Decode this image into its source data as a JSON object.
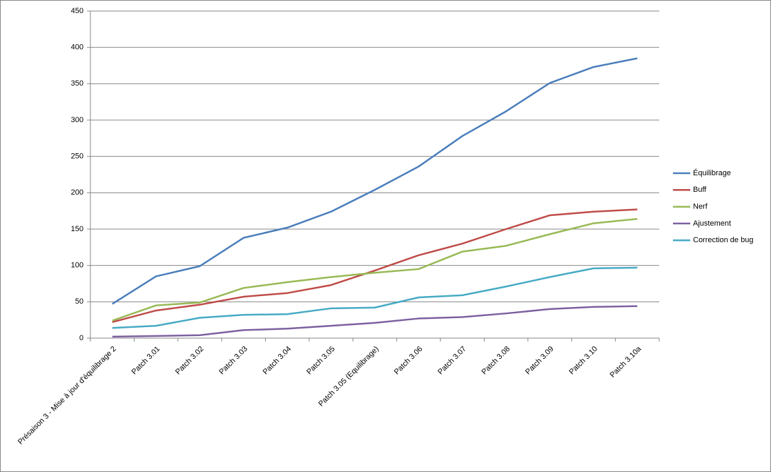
{
  "chart_data": {
    "type": "line",
    "categories": [
      "Présaison 3 - Mise à jour d'équilibrage 2",
      "Patch 3.01",
      "Patch 3.02",
      "Patch 3.03",
      "Patch 3.04",
      "Patch 3.05",
      "Patch 3.05 (Equilibrage)",
      "Patch 3.06",
      "Patch 3.07",
      "Patch 3.08",
      "Patch 3.09",
      "Patch 3.10",
      "Patch 3.10a"
    ],
    "series": [
      {
        "name": "Équilibrage",
        "color": "#4a7ebb",
        "values": [
          47,
          85,
          99,
          138,
          152,
          174,
          204,
          236,
          278,
          312,
          351,
          373,
          385
        ]
      },
      {
        "name": "Buff",
        "color": "#be4b48",
        "values": [
          22,
          38,
          46,
          57,
          62,
          73,
          93,
          114,
          130,
          150,
          169,
          174,
          177
        ]
      },
      {
        "name": "Nerf",
        "color": "#98b954",
        "values": [
          24,
          45,
          49,
          69,
          77,
          84,
          90,
          95,
          119,
          127,
          143,
          158,
          164
        ]
      },
      {
        "name": "Ajustement",
        "color": "#7d60a0",
        "values": [
          2,
          3,
          4,
          11,
          13,
          17,
          21,
          27,
          29,
          34,
          40,
          43,
          44
        ]
      },
      {
        "name": "Correction de bug",
        "color": "#46aac5",
        "values": [
          14,
          17,
          28,
          32,
          33,
          41,
          42,
          56,
          59,
          71,
          84,
          96,
          97
        ]
      }
    ],
    "ylim": [
      0,
      450
    ],
    "yticks": [
      0,
      50,
      100,
      150,
      200,
      250,
      300,
      350,
      400,
      450
    ],
    "grid": true,
    "legend": "right"
  }
}
